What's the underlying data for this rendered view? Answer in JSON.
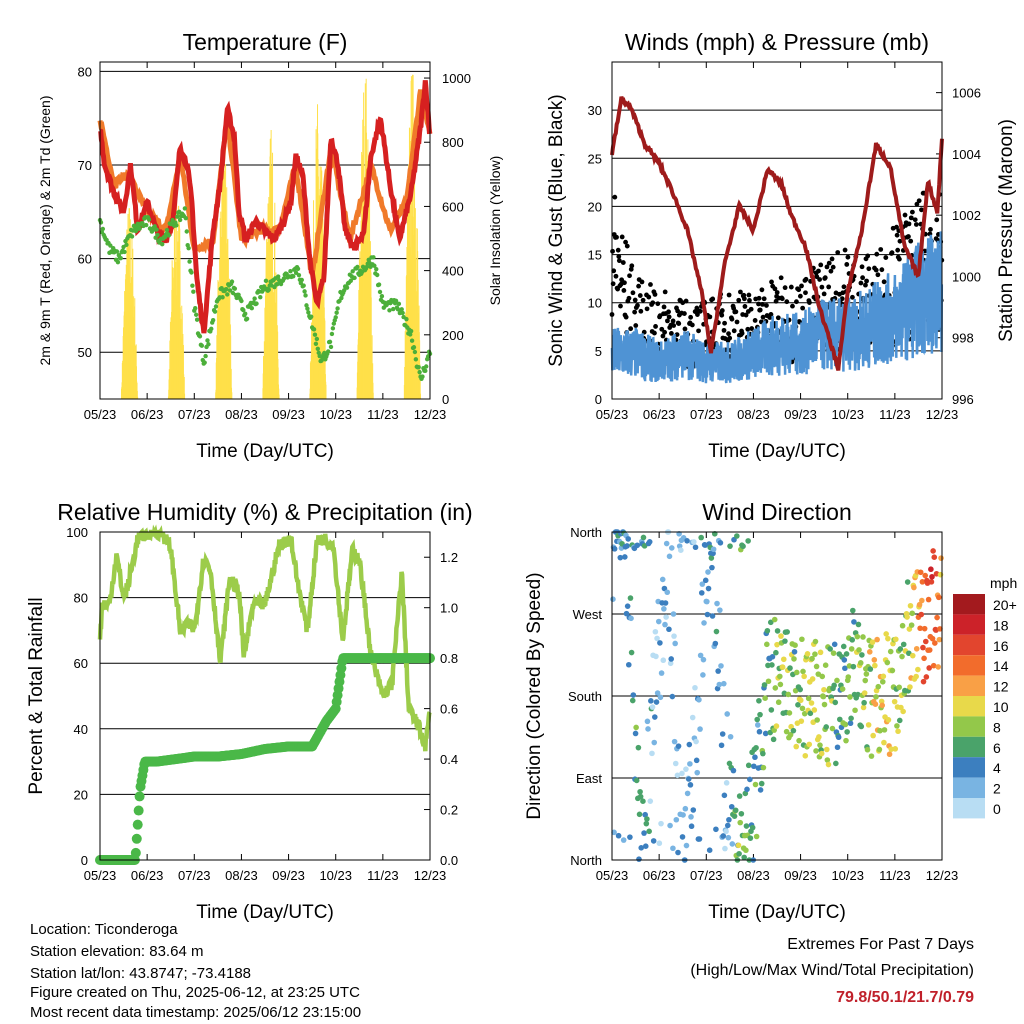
{
  "x_ticks": [
    "05/23",
    "06/23",
    "07/23",
    "08/23",
    "09/23",
    "10/23",
    "11/23",
    "12/23"
  ],
  "time_label": "Time (Day/UTC)",
  "colors": {
    "t2m": "#d62020",
    "t9m": "#f07a2a",
    "td": "#4caf3a",
    "solar": "#ffe04a",
    "gust": "#000000",
    "wind": "#4f93d4",
    "pressure": "#9e1b1b",
    "rh": "#9ccc4a",
    "precip": "#4ab848"
  },
  "panels": {
    "temperature": {
      "title": "Temperature (F)",
      "ylabel": "2m & 9m T (Red, Orange) & 2m Td (Green)",
      "y2label": "Solar Insolation (Yellow)",
      "yticks": [
        "50",
        "60",
        "70",
        "80"
      ],
      "y2ticks": [
        "0",
        "200",
        "400",
        "600",
        "800",
        "1000"
      ]
    },
    "winds": {
      "title": "Winds (mph) & Pressure (mb)",
      "ylabel": "Sonic Wind & Gust (Blue, Black)",
      "y2label": "Station Pressure (Maroon)",
      "yticks": [
        "0",
        "5",
        "10",
        "15",
        "20",
        "25",
        "30"
      ],
      "y2ticks": [
        "996",
        "998",
        "1000",
        "1002",
        "1004",
        "1006"
      ]
    },
    "humidity": {
      "title": "Relative Humidity (%) & Precipitation (in)",
      "ylabel": "Percent & Total Rainfall",
      "yticks": [
        "0",
        "20",
        "40",
        "60",
        "80",
        "100"
      ],
      "y2ticks": [
        "0.0",
        "0.2",
        "0.4",
        "0.6",
        "0.8",
        "1.0",
        "1.2"
      ]
    },
    "direction": {
      "title": "Wind Direction",
      "ylabel": "Direction (Colored By Speed)",
      "yticks": [
        "North",
        "East",
        "South",
        "West",
        "North"
      ],
      "legend_title": "mph",
      "legend_labels": [
        "20+",
        "18",
        "16",
        "14",
        "12",
        "10",
        "8",
        "6",
        "4",
        "2",
        "0"
      ],
      "legend_colors": [
        "#a31a1e",
        "#cc2229",
        "#e2452e",
        "#f26c2c",
        "#f9a046",
        "#e8d94a",
        "#93c84a",
        "#4aa36a",
        "#3c7fbf",
        "#79b4e2",
        "#b8ddf3"
      ]
    }
  },
  "chart_data": [
    {
      "type": "line",
      "title": "Temperature (F)",
      "xlabel": "Time (Day/UTC)",
      "ylabel": "2m & 9m T (Red, Orange) & 2m Td (Green)",
      "y2label": "Solar Insolation (Yellow)",
      "xlim_days": [
        0,
        7
      ],
      "ylim": [
        45,
        81
      ],
      "y2lim": [
        0,
        1050
      ],
      "series": [
        {
          "axis": "y",
          "x": [
            0,
            0.1,
            0.3,
            0.5,
            0.65,
            0.8,
            1.0,
            1.2,
            1.4,
            1.55,
            1.7,
            1.85,
            1.95,
            2.05,
            2.2,
            2.4,
            2.55,
            2.7,
            2.85,
            2.95,
            3.1,
            3.3,
            3.5,
            3.7,
            3.9,
            4.05,
            4.15,
            4.3,
            4.45,
            4.6,
            4.75,
            4.9,
            5.05,
            5.2,
            5.4,
            5.6,
            5.75,
            5.95,
            6.15,
            6.35,
            6.6,
            6.8,
            6.9,
            7.0
          ],
          "y": [
            74,
            70,
            67,
            65,
            70,
            63,
            66,
            63,
            62,
            64,
            72,
            70,
            66,
            58,
            52,
            63,
            68,
            76,
            73,
            65,
            62,
            64,
            63,
            62,
            64,
            66,
            71,
            69,
            60,
            55,
            58,
            73,
            70,
            63,
            61,
            63,
            71,
            75,
            68,
            62,
            67,
            74,
            79,
            73
          ]
        },
        {
          "axis": "y",
          "x": [
            0,
            0.3,
            0.6,
            1.0,
            1.4,
            1.7,
            2.0,
            2.4,
            2.7,
            3.0,
            3.4,
            3.8,
            4.15,
            4.5,
            4.9,
            5.3,
            5.75,
            6.15,
            6.5,
            6.8,
            7.0
          ],
          "y": [
            75,
            68,
            69,
            65,
            63,
            71,
            61,
            62,
            75,
            62,
            63,
            63,
            70,
            58,
            72,
            62,
            70,
            63,
            66,
            78,
            73
          ]
        },
        {
          "axis": "y",
          "x": [
            0,
            0.2,
            0.4,
            0.7,
            1.0,
            1.3,
            1.6,
            1.8,
            2.0,
            2.2,
            2.5,
            2.8,
            3.1,
            3.5,
            3.9,
            4.2,
            4.45,
            4.7,
            4.9,
            5.1,
            5.3,
            5.6,
            5.8,
            6.0,
            6.3,
            6.6,
            6.8,
            7.0
          ],
          "y": [
            64,
            61,
            60,
            63,
            64,
            62,
            64,
            65,
            55,
            49,
            56,
            57,
            54,
            57,
            58,
            59,
            54,
            49,
            51,
            56,
            58,
            59,
            60,
            55,
            55,
            52,
            47,
            50
          ]
        },
        {
          "axis": "y2",
          "x": [
            0.5,
            0.6,
            0.7,
            1.5,
            1.6,
            1.75,
            2.5,
            2.6,
            2.75,
            3.5,
            3.6,
            3.75,
            4.5,
            4.6,
            4.75,
            5.5,
            5.6,
            5.75,
            6.5,
            6.6,
            6.75
          ],
          "y": [
            0,
            600,
            0,
            0,
            650,
            0,
            0,
            800,
            0,
            0,
            820,
            0,
            0,
            900,
            0,
            0,
            1000,
            0,
            0,
            1000,
            0
          ]
        }
      ]
    },
    {
      "type": "scatter",
      "title": "Winds (mph) & Pressure (mb)",
      "xlabel": "Time (Day/UTC)",
      "ylabel": "Sonic Wind & Gust (Blue, Black)",
      "y2label": "Station Pressure (Maroon)",
      "xlim_days": [
        0,
        7
      ],
      "ylim": [
        0,
        35
      ],
      "y2lim": [
        996,
        1007
      ],
      "series": [
        {
          "axis": "y",
          "x": [
            0,
            0.5,
            1.0,
            1.5,
            2.0,
            2.5,
            3.0,
            3.5,
            4.0,
            4.5,
            5.0,
            5.5,
            6.0,
            6.5,
            7.0
          ],
          "y": [
            5,
            5,
            4,
            5,
            4,
            4,
            5,
            6,
            6,
            7,
            7,
            8,
            9,
            11,
            12
          ]
        },
        {
          "axis": "y",
          "x": [
            0,
            0.5,
            1.0,
            1.5,
            2.0,
            2.5,
            3.0,
            3.5,
            4.0,
            4.5,
            5.0,
            5.5,
            6.0,
            6.5,
            7.0
          ],
          "y": [
            20,
            11,
            10,
            9,
            9,
            10,
            10,
            11,
            11,
            13,
            14,
            13,
            16,
            18,
            21
          ]
        },
        {
          "axis": "y2",
          "x": [
            0,
            0.2,
            0.4,
            0.7,
            1.0,
            1.3,
            1.6,
            1.9,
            2.1,
            2.4,
            2.7,
            3.0,
            3.3,
            3.6,
            3.8,
            4.1,
            4.4,
            4.6,
            4.8,
            5.0,
            5.3,
            5.6,
            5.9,
            6.2,
            6.5,
            6.7,
            6.9,
            7.0
          ],
          "y": [
            1004,
            1005.8,
            1005.5,
            1004.3,
            1003.7,
            1002.7,
            1001.5,
            999.5,
            997.5,
            1000.5,
            1002.3,
            1001.5,
            1003.5,
            1003,
            1002,
            1001,
            999,
            998,
            997,
            999.5,
            1001.5,
            1004.3,
            1003.6,
            1001,
            1000,
            1003.1,
            1002.1,
            1004.5
          ]
        }
      ]
    },
    {
      "type": "line",
      "title": "Relative Humidity (%) & Precipitation (in)",
      "xlabel": "Time (Day/UTC)",
      "ylabel": "Percent & Total Rainfall",
      "xlim_days": [
        0,
        7
      ],
      "ylim": [
        0,
        100
      ],
      "y2lim": [
        0,
        1.3
      ],
      "series": [
        {
          "axis": "y",
          "x": [
            0,
            0.05,
            0.2,
            0.35,
            0.5,
            0.6,
            0.8,
            0.95,
            1.1,
            1.3,
            1.5,
            1.7,
            1.9,
            2.0,
            2.2,
            2.35,
            2.55,
            2.75,
            2.95,
            3.05,
            3.25,
            3.5,
            3.8,
            4.05,
            4.2,
            4.4,
            4.6,
            4.75,
            4.95,
            5.15,
            5.35,
            5.5,
            5.75,
            6.0,
            6.2,
            6.4,
            6.55,
            6.75,
            6.9,
            7.0
          ],
          "y": [
            68,
            78,
            78,
            93,
            80,
            84,
            98,
            99,
            100,
            100,
            95,
            70,
            72,
            70,
            92,
            88,
            60,
            86,
            82,
            62,
            78,
            78,
            96,
            98,
            84,
            70,
            97,
            98,
            96,
            67,
            94,
            92,
            62,
            50,
            54,
            88,
            46,
            41,
            35,
            45
          ]
        },
        {
          "axis": "y2",
          "x": [
            0,
            0.5,
            0.75,
            0.85,
            0.95,
            1.2,
            1.6,
            2.0,
            2.5,
            3.0,
            3.5,
            4.0,
            4.5,
            4.8,
            5.0,
            5.15,
            5.3,
            5.6,
            6.0,
            6.5,
            7.0
          ],
          "y": [
            0,
            0,
            0,
            0.28,
            0.39,
            0.39,
            0.4,
            0.41,
            0.41,
            0.42,
            0.44,
            0.45,
            0.45,
            0.55,
            0.6,
            0.8,
            0.8,
            0.8,
            0.8,
            0.8,
            0.8
          ]
        }
      ]
    },
    {
      "type": "scatter",
      "title": "Wind Direction",
      "xlabel": "Time (Day/UTC)",
      "ylabel": "Direction (Colored By Speed)",
      "xlim_days": [
        0,
        7
      ],
      "ylim": [
        0,
        360
      ],
      "series": [
        {
          "x": [
            0.05,
            0.3,
            0.6,
            0.9,
            1.2,
            1.5,
            1.8,
            2.1,
            2.4,
            2.7,
            3.0,
            3.3,
            3.6,
            3.9,
            4.2,
            4.5,
            4.8,
            5.1,
            5.4,
            5.7,
            6.0,
            6.3,
            6.6,
            6.8,
            6.95
          ],
          "y": [
            355,
            340,
            10,
            180,
            330,
            20,
            160,
            350,
            120,
            20,
            60,
            200,
            190,
            180,
            175,
            165,
            170,
            210,
            180,
            190,
            180,
            250,
            260,
            270,
            280
          ],
          "speed": [
            4,
            5,
            6,
            3,
            3,
            2,
            4,
            5,
            3,
            8,
            6,
            6,
            9,
            8,
            10,
            9,
            7,
            8,
            10,
            11,
            10,
            9,
            15,
            17,
            14
          ]
        }
      ]
    }
  ],
  "footer": {
    "location": "Location: Ticonderoga",
    "elevation": "Station elevation: 83.64 m",
    "latlon": "Station lat/lon: 43.8747; -73.4188",
    "created": "Figure created on Thu, 2025-06-12, at 23:25 UTC",
    "recent": "Most recent data timestamp: 2025/06/12 23:15:00"
  },
  "extremes": {
    "title": "Extremes For Past 7 Days",
    "subtitle": "(High/Low/Max Wind/Total Precipitation)",
    "values": "79.8/50.1/21.7/0.79"
  }
}
